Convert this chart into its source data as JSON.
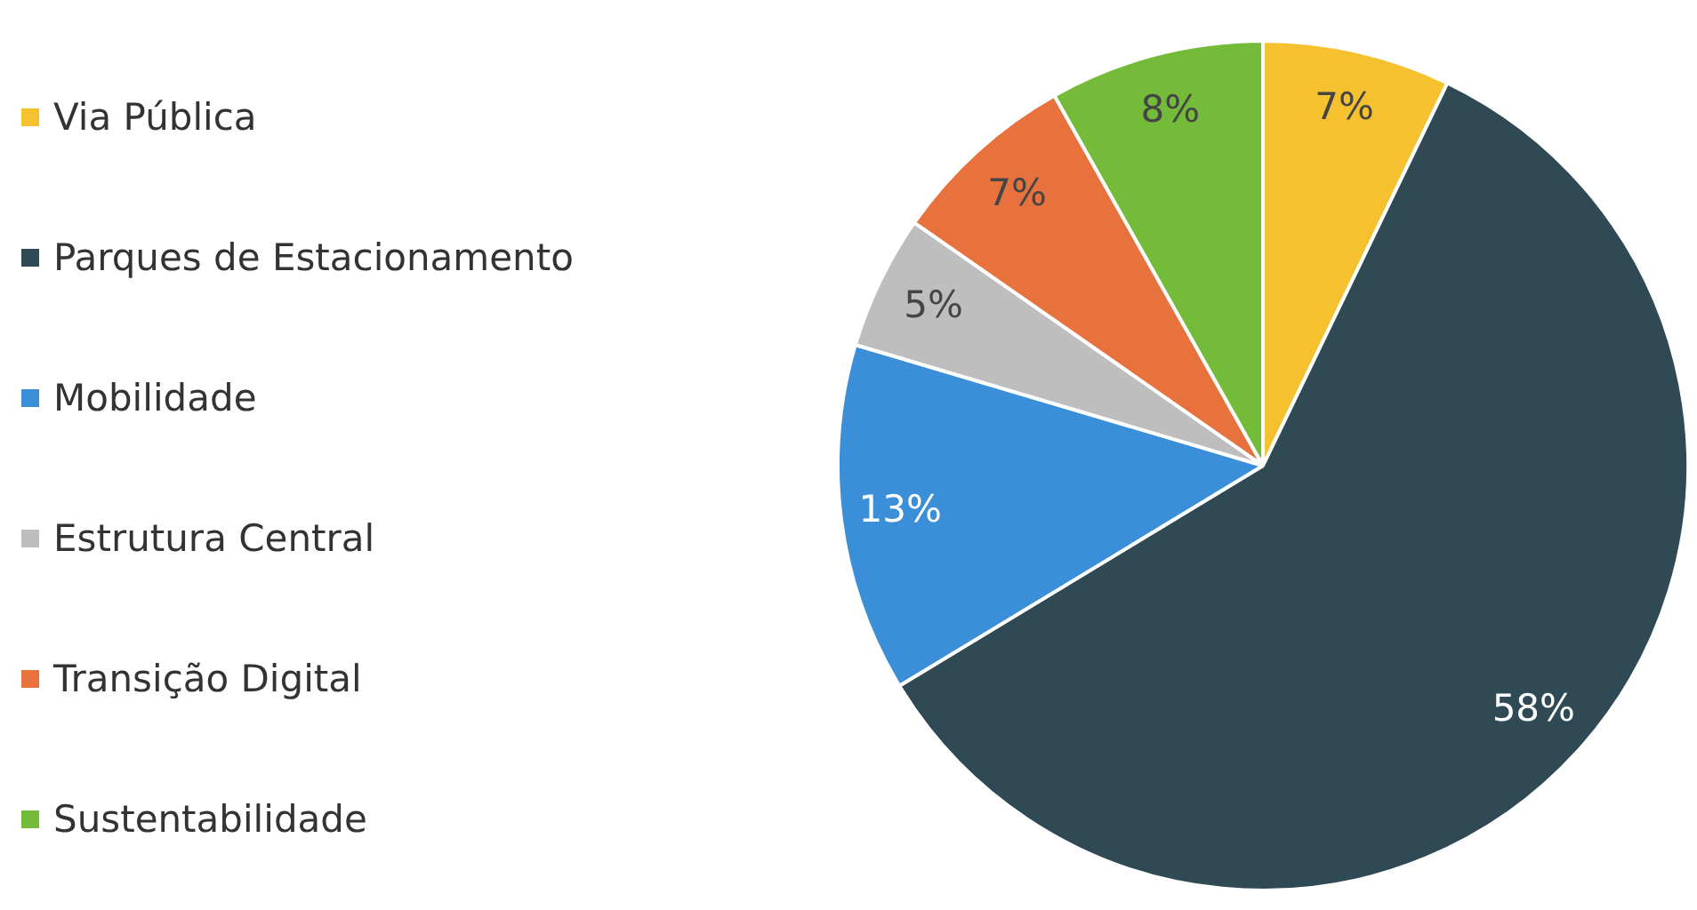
{
  "chart_data": {
    "type": "pie",
    "categories": [
      "Via Pública",
      "Parques de Estacionamento",
      "Mobilidade",
      "Estrutura Central",
      "Transição Digital",
      "Sustentabilidade"
    ],
    "values": [
      7,
      58,
      13,
      5,
      7,
      8
    ],
    "colors": [
      "#f6c12f",
      "#2f4a55",
      "#3b8fd8",
      "#bebebe",
      "#e8723d",
      "#74bb3a"
    ],
    "value_labels": [
      "7%",
      "58%",
      "13%",
      "5%",
      "7%",
      "8%"
    ],
    "legend": "left"
  }
}
